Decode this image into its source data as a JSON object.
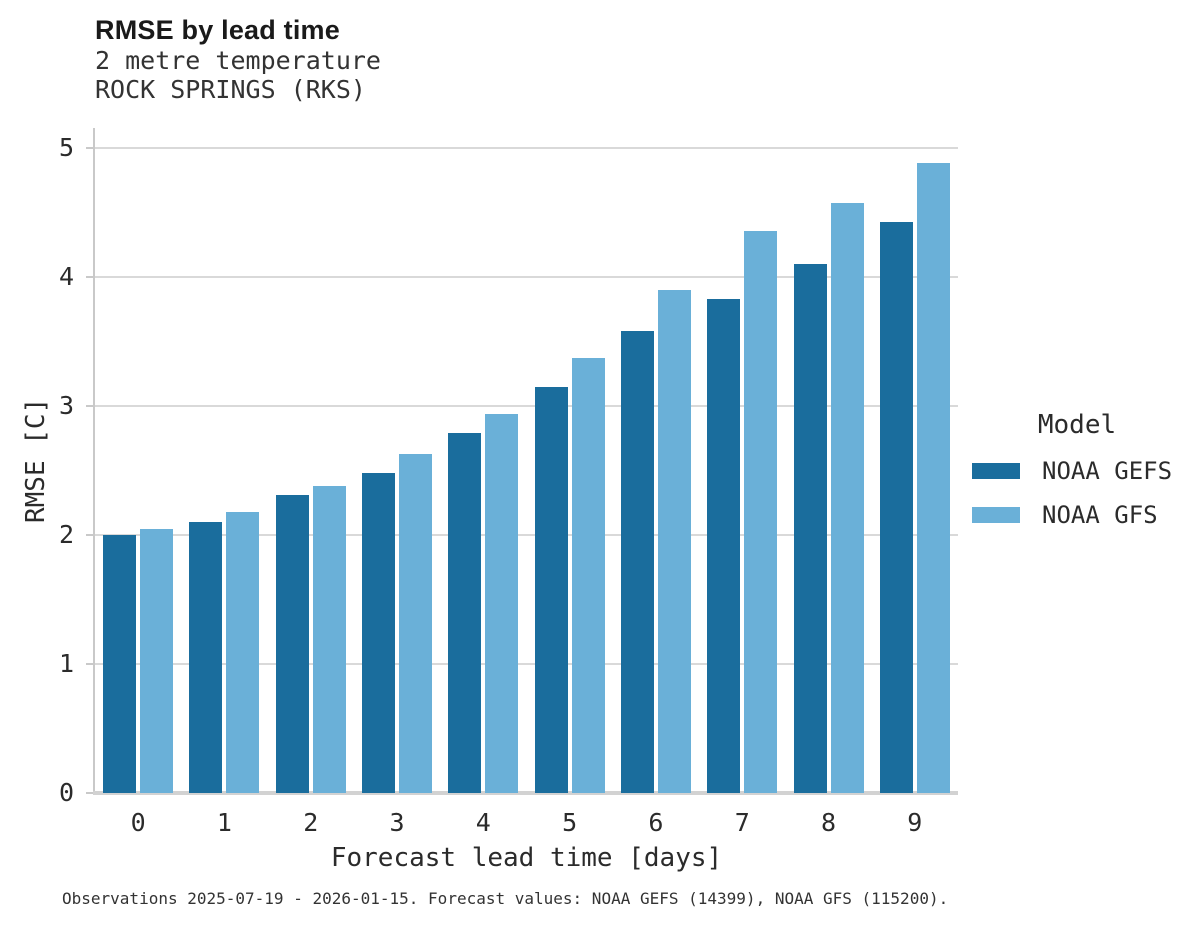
{
  "chart_data": {
    "type": "bar",
    "title": "RMSE by lead time",
    "subtitle1": "2 metre temperature",
    "subtitle2": "ROCK SPRINGS (RKS)",
    "xlabel": "Forecast lead time [days]",
    "ylabel": "RMSE [C]",
    "categories": [
      "0",
      "1",
      "2",
      "3",
      "4",
      "5",
      "6",
      "7",
      "8",
      "9"
    ],
    "series": [
      {
        "name": "NOAA GEFS",
        "color": "#1a6d9d",
        "values": [
          2.0,
          2.1,
          2.31,
          2.48,
          2.79,
          3.15,
          3.58,
          3.83,
          4.1,
          4.43
        ]
      },
      {
        "name": "NOAA GFS",
        "color": "#6ab0d8",
        "values": [
          2.05,
          2.18,
          2.38,
          2.63,
          2.94,
          3.37,
          3.9,
          4.36,
          4.57,
          4.88
        ]
      }
    ],
    "ylim": [
      0,
      5
    ],
    "yticks": [
      0,
      1,
      2,
      3,
      4,
      5
    ],
    "grid": "horizontal",
    "legend": {
      "title": "Model",
      "position": "right"
    },
    "footnote": "Observations 2025-07-19 - 2026-01-15. Forecast values: NOAA GEFS (14399), NOAA GFS (115200)."
  },
  "colors": {
    "gefs_dark_blue": "#1a6d9d",
    "gfs_light_blue": "#6ab0d8",
    "gridline_gray": "#d9d9d9",
    "axis_gray": "#c9c9c9"
  }
}
